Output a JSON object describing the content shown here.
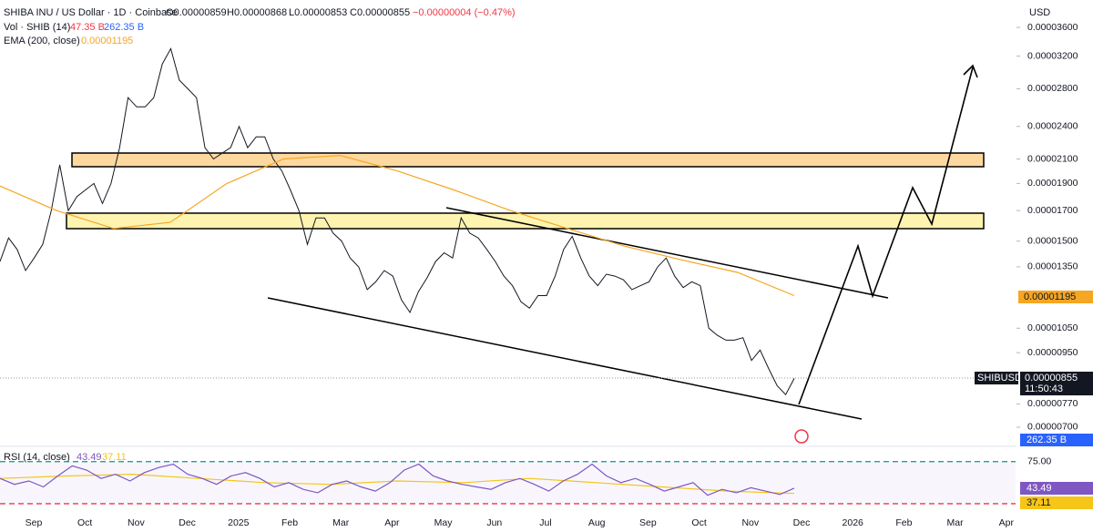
{
  "chart_data": {
    "type": "line",
    "header": {
      "symbol": "SHIBA INU / US Dollar · 1D · Coinbase",
      "open": "O0.00000859",
      "high": "H0.00000868",
      "low": "L0.00000853",
      "close": "C0.00000855",
      "change": "−0.00000004 (−0.47%)",
      "vol_name": "Vol · SHIB (14)",
      "vol_value": "47.35 B",
      "vol_ma": "262.35 B",
      "ema_name": "EMA (200, close)",
      "ema_value": "0.00001195",
      "rsi_name": "RSI (14, close)",
      "currency": "USD",
      "symbol_badge": "SHIBUSD",
      "last_price": "0.00000855",
      "countdown": "11:50:43"
    },
    "log_scale": true,
    "ylim": [
      6.52e-06,
      4.028e-05
    ],
    "yticks": [
      {
        "value": 3.6e-05,
        "label": "0.00003600"
      },
      {
        "value": 3.2e-05,
        "label": "0.00003200"
      },
      {
        "value": 2.8e-05,
        "label": "0.00002800"
      },
      {
        "value": 2.4e-05,
        "label": "0.00002400"
      },
      {
        "value": 2.1e-05,
        "label": "0.00002100"
      },
      {
        "value": 1.9e-05,
        "label": "0.00001900"
      },
      {
        "value": 1.7e-05,
        "label": "0.00001700"
      },
      {
        "value": 1.5e-05,
        "label": "0.00001500"
      },
      {
        "value": 1.35e-05,
        "label": "0.00001350"
      },
      {
        "value": 1.05e-05,
        "label": "0.00001050"
      },
      {
        "value": 9.5e-06,
        "label": "0.00000950"
      },
      {
        "value": 7.7e-06,
        "label": "0.00000770"
      },
      {
        "value": 7e-06,
        "label": "0.00000700"
      }
    ],
    "x_axis_labels": [
      "Sep",
      "Oct",
      "Nov",
      "Dec",
      "2025",
      "Feb",
      "Mar",
      "Apr",
      "May",
      "Jun",
      "Jul",
      "Aug",
      "Sep",
      "Oct",
      "Nov",
      "Dec",
      "2026",
      "Feb",
      "Mar",
      "Apr"
    ],
    "series": [
      {
        "name": "SHIBUSD",
        "color": "#131722",
        "values": [
          1.38e-05,
          1.52e-05,
          1.45e-05,
          1.33e-05,
          1.4e-05,
          1.48e-05,
          1.7e-05,
          2.05e-05,
          1.7e-05,
          1.8e-05,
          1.85e-05,
          1.9e-05,
          1.75e-05,
          1.9e-05,
          2.2e-05,
          2.7e-05,
          2.6e-05,
          2.6e-05,
          2.7e-05,
          3.1e-05,
          3.3e-05,
          2.9e-05,
          2.8e-05,
          2.7e-05,
          2.2e-05,
          2.1e-05,
          2.15e-05,
          2.2e-05,
          2.4e-05,
          2.2e-05,
          2.3e-05,
          2.3e-05,
          2.1e-05,
          2e-05,
          1.85e-05,
          1.7e-05,
          1.48e-05,
          1.65e-05,
          1.65e-05,
          1.55e-05,
          1.5e-05,
          1.4e-05,
          1.35e-05,
          1.23e-05,
          1.27e-05,
          1.33e-05,
          1.3e-05,
          1.18e-05,
          1.12e-05,
          1.22e-05,
          1.29e-05,
          1.38e-05,
          1.43e-05,
          1.4e-05,
          1.65e-05,
          1.55e-05,
          1.52e-05,
          1.45e-05,
          1.38e-05,
          1.3e-05,
          1.25e-05,
          1.17e-05,
          1.14e-05,
          1.2e-05,
          1.2e-05,
          1.3e-05,
          1.45e-05,
          1.53e-05,
          1.4e-05,
          1.3e-05,
          1.25e-05,
          1.31e-05,
          1.3e-05,
          1.28e-05,
          1.23e-05,
          1.25e-05,
          1.27e-05,
          1.35e-05,
          1.4e-05,
          1.3e-05,
          1.24e-05,
          1.27e-05,
          1.25e-05,
          1.05e-05,
          1.02e-05,
          1e-05,
          1e-05,
          1.01e-05,
          9.2e-06,
          9.6e-06,
          8.9e-06,
          8.3e-06,
          8e-06,
          8.55e-06
        ]
      },
      {
        "name": "EMA (200, close)",
        "color": "#f5a623",
        "values": [
          1.88e-05,
          1.7e-05,
          1.58e-05,
          1.62e-05,
          1.9e-05,
          2.1e-05,
          2.13e-05,
          2e-05,
          1.85e-05,
          1.7e-05,
          1.58e-05,
          1.47e-05,
          1.39e-05,
          1.32e-05,
          1.2e-05
        ]
      }
    ],
    "rsi": {
      "ylim": [
        13,
        91
      ],
      "yticks": [
        {
          "value": 75,
          "label": "75.00"
        }
      ],
      "levels": [
        {
          "value": 75,
          "color": "#089981"
        },
        {
          "value": 25,
          "color": "#f23645"
        }
      ],
      "values": [
        55,
        48,
        52,
        45,
        58,
        70,
        65,
        55,
        60,
        52,
        62,
        68,
        72,
        60,
        55,
        48,
        58,
        62,
        55,
        45,
        50,
        42,
        38,
        48,
        52,
        45,
        40,
        50,
        65,
        72,
        58,
        52,
        48,
        45,
        42,
        50,
        55,
        48,
        40,
        52,
        60,
        72,
        58,
        50,
        55,
        48,
        40,
        45,
        50,
        35,
        42,
        38,
        44,
        40,
        36,
        43.49
      ],
      "color": "#7e57c2",
      "ma_values": [
        55,
        58,
        60,
        55,
        50,
        48,
        52,
        50,
        55,
        50,
        45,
        40,
        37.11
      ],
      "ma_color": "#f5c518"
    }
  }
}
